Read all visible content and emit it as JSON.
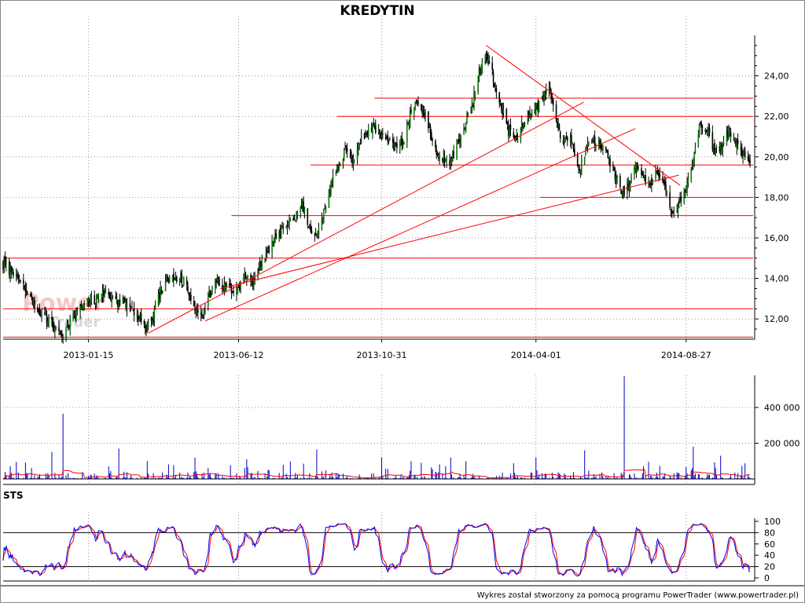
{
  "title": "KREDYTIN",
  "footer": "Wykres został stworzony za pomocą programu PowerTrader (www.powertrader.pl)",
  "watermark": {
    "line1": "Power",
    "line2": "Trader"
  },
  "colors": {
    "up_candle": "#008000",
    "down_candle": "#000000",
    "trend_line": "#ff0000",
    "volume_bar": "#0000cc",
    "volume_avg": "#ff0000",
    "sts_k": "#0000ff",
    "sts_d": "#ff0000",
    "grid": "#999999",
    "axis": "#000000"
  },
  "chart_data": [
    {
      "type": "candlestick",
      "panel": "price",
      "title": "KREDYTIN",
      "x_axis": {
        "type": "date",
        "range": [
          "2012-10-23",
          "2014-11-01"
        ],
        "tick_dates": [
          "2013-01-15",
          "2013-06-12",
          "2013-10-31",
          "2014-04-01",
          "2014-08-27"
        ],
        "tick_labels": [
          "2013-01-15",
          "2013-06-12",
          "2013-10-31",
          "2014-04-01",
          "2014-08-27"
        ]
      },
      "y_axis": {
        "range": [
          11,
          26
        ],
        "tick_values": [
          12,
          14,
          16,
          18,
          20,
          22,
          24
        ],
        "tick_labels": [
          "12,00",
          "14,00",
          "16,00",
          "18,00",
          "20,00",
          "22,00",
          "24,00"
        ]
      },
      "grid": true,
      "close_path": [
        [
          "2012-10-23",
          14.7
        ],
        [
          "2012-10-30",
          14.4
        ],
        [
          "2012-11-07",
          13.9
        ],
        [
          "2012-11-16",
          13.3
        ],
        [
          "2012-11-23",
          12.8
        ],
        [
          "2012-11-30",
          12.3
        ],
        [
          "2012-12-07",
          11.9
        ],
        [
          "2012-12-14",
          11.5
        ],
        [
          "2012-12-20",
          11.3
        ],
        [
          "2012-12-28",
          11.9
        ],
        [
          "2013-01-08",
          12.6
        ],
        [
          "2013-01-15",
          13.1
        ],
        [
          "2013-01-22",
          12.9
        ],
        [
          "2013-01-29",
          13.3
        ],
        [
          "2013-02-05",
          13.0
        ],
        [
          "2013-02-12",
          12.8
        ],
        [
          "2013-02-19",
          12.9
        ],
        [
          "2013-02-26",
          12.5
        ],
        [
          "2013-03-05",
          12.2
        ],
        [
          "2013-03-12",
          11.6
        ],
        [
          "2013-03-19",
          11.9
        ],
        [
          "2013-03-26",
          13.2
        ],
        [
          "2013-04-02",
          13.8
        ],
        [
          "2013-04-09",
          13.9
        ],
        [
          "2013-04-16",
          14.1
        ],
        [
          "2013-04-23",
          13.4
        ],
        [
          "2013-04-30",
          12.6
        ],
        [
          "2013-05-07",
          12.1
        ],
        [
          "2013-05-14",
          13.2
        ],
        [
          "2013-05-21",
          13.9
        ],
        [
          "2013-05-28",
          13.6
        ],
        [
          "2013-06-04",
          13.4
        ],
        [
          "2013-06-12",
          13.5
        ],
        [
          "2013-06-19",
          14.1
        ],
        [
          "2013-06-26",
          13.9
        ],
        [
          "2013-07-03",
          14.6
        ],
        [
          "2013-07-10",
          15.4
        ],
        [
          "2013-07-17",
          15.8
        ],
        [
          "2013-07-24",
          16.3
        ],
        [
          "2013-07-31",
          16.6
        ],
        [
          "2013-08-07",
          17.1
        ],
        [
          "2013-08-14",
          17.6
        ],
        [
          "2013-08-21",
          16.5
        ],
        [
          "2013-08-28",
          15.9
        ],
        [
          "2013-09-04",
          17.3
        ],
        [
          "2013-09-11",
          18.6
        ],
        [
          "2013-09-18",
          19.5
        ],
        [
          "2013-09-25",
          20.3
        ],
        [
          "2013-10-02",
          19.9
        ],
        [
          "2013-10-09",
          20.6
        ],
        [
          "2013-10-16",
          21.3
        ],
        [
          "2013-10-23",
          21.6
        ],
        [
          "2013-10-31",
          21.0
        ],
        [
          "2013-11-07",
          20.8
        ],
        [
          "2013-11-14",
          20.5
        ],
        [
          "2013-11-21",
          20.8
        ],
        [
          "2013-11-28",
          22.0
        ],
        [
          "2013-12-05",
          22.8
        ],
        [
          "2013-12-12",
          22.2
        ],
        [
          "2013-12-19",
          21.0
        ],
        [
          "2013-12-27",
          20.0
        ],
        [
          "2014-01-07",
          19.8
        ],
        [
          "2014-01-14",
          20.6
        ],
        [
          "2014-01-21",
          21.5
        ],
        [
          "2014-01-28",
          22.5
        ],
        [
          "2014-02-04",
          24.2
        ],
        [
          "2014-02-11",
          25.2
        ],
        [
          "2014-02-18",
          23.9
        ],
        [
          "2014-02-25",
          22.6
        ],
        [
          "2014-03-04",
          21.4
        ],
        [
          "2014-03-11",
          20.8
        ],
        [
          "2014-03-18",
          21.6
        ],
        [
          "2014-03-25",
          22.1
        ],
        [
          "2014-04-01",
          22.3
        ],
        [
          "2014-04-08",
          23.0
        ],
        [
          "2014-04-15",
          23.4
        ],
        [
          "2014-04-22",
          21.6
        ],
        [
          "2014-04-29",
          20.6
        ],
        [
          "2014-05-06",
          20.9
        ],
        [
          "2014-05-13",
          19.4
        ],
        [
          "2014-05-20",
          20.3
        ],
        [
          "2014-05-27",
          20.9
        ],
        [
          "2014-06-03",
          20.6
        ],
        [
          "2014-06-10",
          20.1
        ],
        [
          "2014-06-17",
          19.3
        ],
        [
          "2014-06-24",
          18.1
        ],
        [
          "2014-07-01",
          18.6
        ],
        [
          "2014-07-08",
          19.5
        ],
        [
          "2014-07-15",
          19.1
        ],
        [
          "2014-07-22",
          18.6
        ],
        [
          "2014-07-29",
          19.2
        ],
        [
          "2014-08-05",
          18.7
        ],
        [
          "2014-08-12",
          17.3
        ],
        [
          "2014-08-19",
          17.6
        ],
        [
          "2014-08-27",
          18.6
        ],
        [
          "2014-09-03",
          19.9
        ],
        [
          "2014-09-10",
          21.7
        ],
        [
          "2014-09-17",
          21.3
        ],
        [
          "2014-09-24",
          20.2
        ],
        [
          "2014-10-01",
          20.6
        ],
        [
          "2014-10-08",
          21.1
        ],
        [
          "2014-10-15",
          20.6
        ],
        [
          "2014-10-22",
          20.2
        ],
        [
          "2014-10-29",
          19.9
        ]
      ],
      "horizontal_lines": [
        {
          "y": 22.9,
          "x_from": "2013-10-24",
          "x_to": "2014-11-01"
        },
        {
          "y": 22.0,
          "x_from": "2013-09-17",
          "x_to": "2014-11-01"
        },
        {
          "y": 19.6,
          "x_from": "2013-08-22",
          "x_to": "2014-11-01"
        },
        {
          "y": 18.0,
          "x_from": "2014-04-05",
          "x_to": "2014-11-01"
        },
        {
          "y": 17.1,
          "x_from": "2013-06-05",
          "x_to": "2014-11-01"
        },
        {
          "y": 15.0,
          "x_from": "2012-10-23",
          "x_to": "2014-11-01"
        },
        {
          "y": 12.5,
          "x_from": "2012-10-23",
          "x_to": "2014-11-01"
        },
        {
          "y": 11.1,
          "x_from": "2012-10-23",
          "x_to": "2014-11-01"
        }
      ],
      "trend_lines": [
        {
          "from": [
            "2013-03-15",
            11.3
          ],
          "to": [
            "2014-05-18",
            22.7
          ]
        },
        {
          "from": [
            "2013-05-10",
            11.9
          ],
          "to": [
            "2014-07-08",
            21.4
          ]
        },
        {
          "from": [
            "2013-05-25",
            13.5
          ],
          "to": [
            "2014-08-20",
            19.1
          ]
        },
        {
          "from": [
            "2014-02-11",
            25.5
          ],
          "to": [
            "2014-08-21",
            18.6
          ]
        }
      ]
    },
    {
      "type": "bar",
      "panel": "volume",
      "y_axis": {
        "range": [
          0,
          580000
        ],
        "tick_values": [
          200000,
          400000
        ],
        "tick_labels": [
          "200 000",
          "400 000"
        ]
      },
      "grid": true,
      "spikes": [
        [
          "2012-12-10",
          150000
        ],
        [
          "2012-12-21",
          365000
        ],
        [
          "2013-02-14",
          170000
        ],
        [
          "2013-03-14",
          100000
        ],
        [
          "2013-04-30",
          120000
        ],
        [
          "2013-06-20",
          110000
        ],
        [
          "2013-08-28",
          165000
        ],
        [
          "2013-10-31",
          120000
        ],
        [
          "2014-01-07",
          120000
        ],
        [
          "2014-04-01",
          120000
        ],
        [
          "2014-05-19",
          160000
        ],
        [
          "2014-06-27",
          575000
        ],
        [
          "2014-09-03",
          180000
        ],
        [
          "2014-09-30",
          130000
        ]
      ]
    },
    {
      "type": "line",
      "panel": "oscillator",
      "title": "STS",
      "y_axis": {
        "range": [
          0,
          100
        ],
        "tick_values": [
          0,
          20,
          40,
          60,
          80,
          100
        ],
        "tick_labels": [
          "0",
          "20",
          "40",
          "60",
          "80",
          "100"
        ]
      },
      "reference_lines": [
        20,
        80
      ],
      "series": [
        {
          "role": "%K",
          "color": "#0000ff"
        },
        {
          "role": "%D",
          "color": "#ff0000"
        }
      ]
    }
  ]
}
